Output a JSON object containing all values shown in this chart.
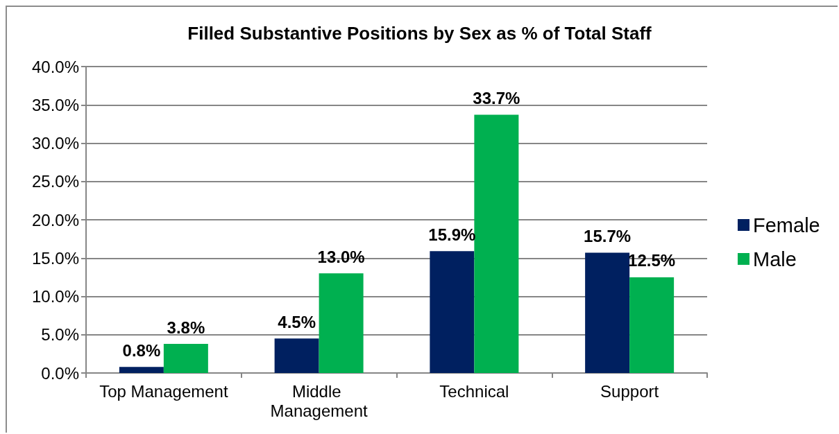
{
  "chart_data": {
    "type": "bar",
    "title": "Filled Substantive Positions by Sex as % of Total Staff",
    "categories": [
      "Top Management",
      "Middle Management",
      "Technical",
      "Support"
    ],
    "series": [
      {
        "name": "Female",
        "color": "#002060",
        "values": [
          0.8,
          4.5,
          15.9,
          15.7
        ],
        "value_labels": [
          "0.8%",
          "4.5%",
          "15.9%",
          "15.7%"
        ]
      },
      {
        "name": "Male",
        "color": "#00b050",
        "values": [
          3.8,
          13.0,
          33.7,
          12.5
        ],
        "value_labels": [
          "3.8%",
          "13.0%",
          "33.7%",
          "12.5%"
        ]
      }
    ],
    "ylim": [
      0,
      40
    ],
    "yticks": [
      {
        "value": 0,
        "label": "0.0%"
      },
      {
        "value": 5,
        "label": "5.0%"
      },
      {
        "value": 10,
        "label": "10.0%"
      },
      {
        "value": 15,
        "label": "15.0%"
      },
      {
        "value": 20,
        "label": "20.0%"
      },
      {
        "value": 25,
        "label": "25.0%"
      },
      {
        "value": 30,
        "label": "30.0%"
      },
      {
        "value": 35,
        "label": "35.0%"
      },
      {
        "value": 40,
        "label": "40.0%"
      }
    ],
    "grid": "y",
    "legend": "right"
  }
}
